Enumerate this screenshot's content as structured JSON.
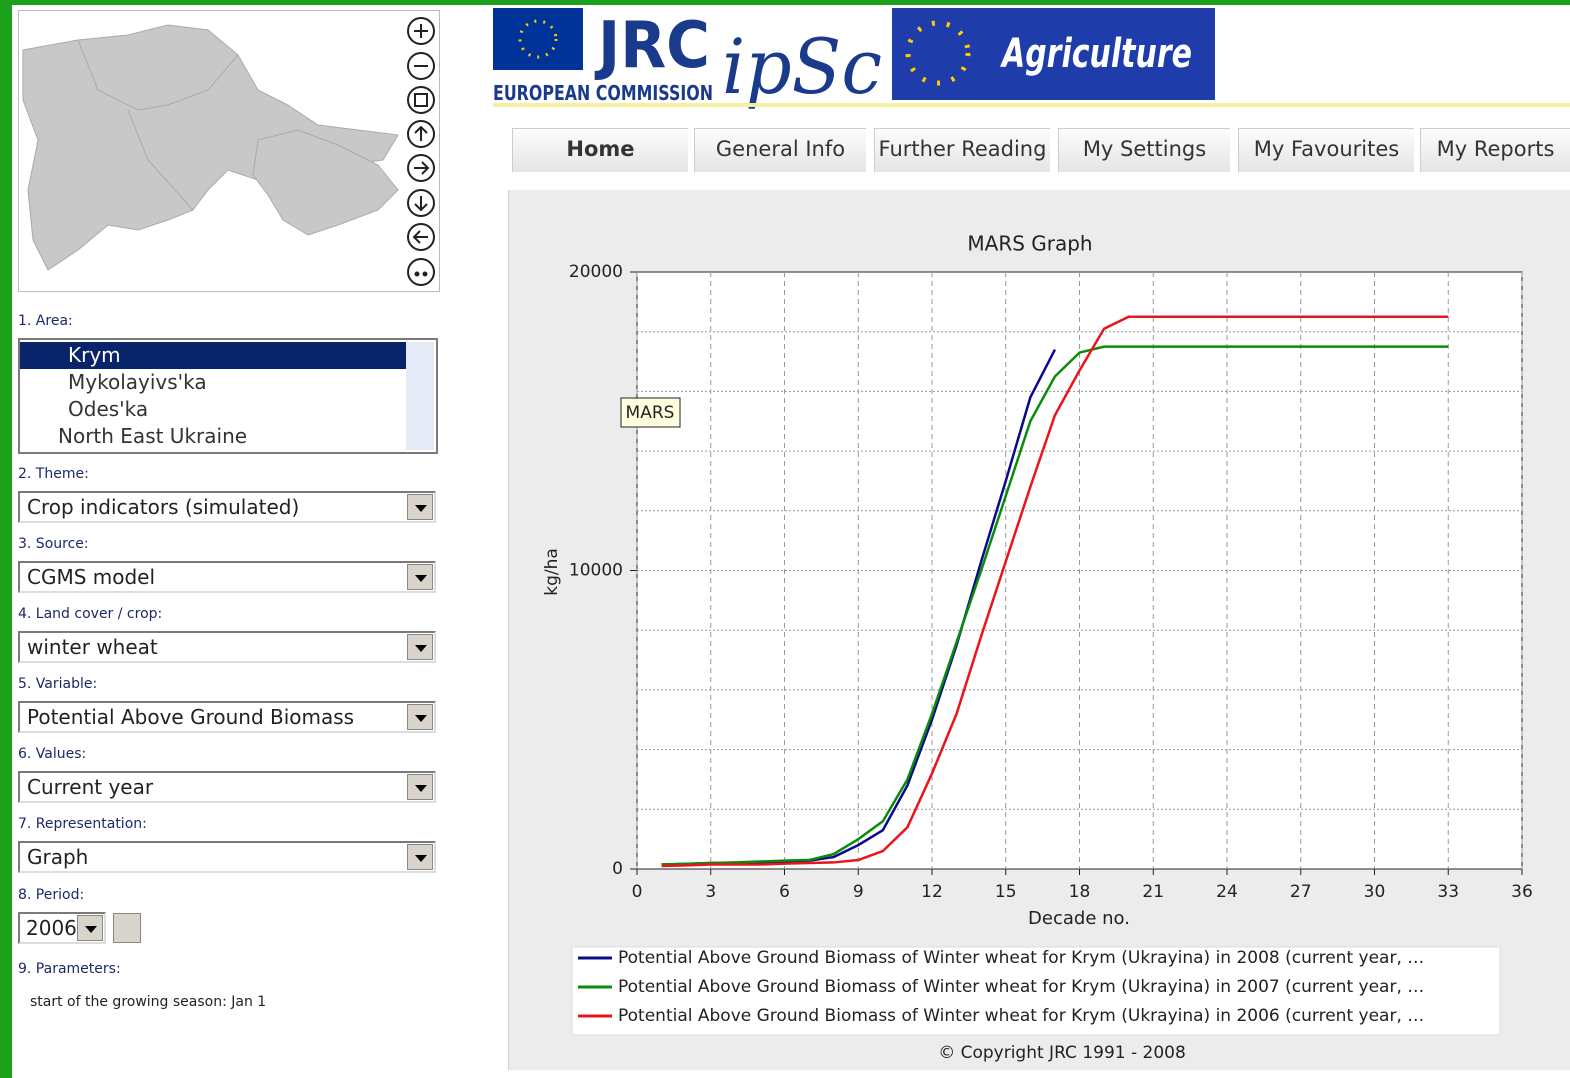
{
  "header": {
    "logo": "JRC",
    "org": "EUROPEAN COMMISSION",
    "institute": "ipSc",
    "banner": "Agriculture"
  },
  "tabs": [
    "Home",
    "General Info",
    "Further Reading",
    "My Settings",
    "My Favourites",
    "My Reports"
  ],
  "sidebar": {
    "area": {
      "label": "1. Area:",
      "options": [
        "Krym",
        "Mykolayivs'ka",
        "Odes'ka",
        "North East Ukraine"
      ]
    },
    "fields": [
      {
        "label": "2. Theme:",
        "value": "Crop indicators (simulated)"
      },
      {
        "label": "3. Source:",
        "value": "CGMS model"
      },
      {
        "label": "4. Land cover / crop:",
        "value": "winter wheat"
      },
      {
        "label": "5. Variable:",
        "value": "Potential Above Ground Biomass"
      },
      {
        "label": "6. Values:",
        "value": "Current year"
      },
      {
        "label": "7. Representation:",
        "value": "Graph"
      }
    ],
    "period": {
      "label": "8. Period:",
      "value": "2006"
    },
    "parameters": {
      "label": "9. Parameters:",
      "text": "start of the growing season: Jan 1"
    }
  },
  "chart_data": {
    "type": "line",
    "title": "MARS Graph",
    "x_label": "Decade no.",
    "y_label": "kg/ha",
    "annotation": "MARS",
    "copyright": "© Copyright JRC 1991 - 2008",
    "xlim": [
      0,
      36
    ],
    "xticks": [
      0,
      3,
      6,
      9,
      12,
      15,
      18,
      21,
      24,
      27,
      30,
      33,
      36
    ],
    "ylim": [
      0,
      20000
    ],
    "yticks": [
      0,
      10000,
      20000
    ],
    "ygrid": [
      2000,
      4000,
      6000,
      8000,
      10000,
      12000,
      14000,
      16000,
      18000
    ],
    "grid": true,
    "series": [
      {
        "name": "Potential Above Ground Biomass of Winter wheat for Krym (Ukrayina) in 2008 (current year, …",
        "color": "#0a0a8c",
        "x": [
          1,
          2,
          3,
          4,
          5,
          6,
          7,
          8,
          9,
          10,
          11,
          12,
          13,
          14,
          15,
          16,
          17
        ],
        "values": [
          150,
          170,
          200,
          200,
          220,
          250,
          280,
          400,
          800,
          1300,
          2800,
          5000,
          7500,
          10300,
          13000,
          15800,
          17400
        ]
      },
      {
        "name": "Potential Above Ground Biomass of Winter wheat for Krym (Ukrayina) in 2007 (current year, …",
        "color": "#0a8c0a",
        "x": [
          1,
          2,
          3,
          4,
          5,
          6,
          7,
          8,
          9,
          10,
          11,
          12,
          13,
          14,
          15,
          16,
          17,
          18,
          19,
          20,
          21,
          22,
          23,
          24,
          25,
          26,
          27,
          28,
          29,
          30,
          31,
          32,
          33
        ],
        "values": [
          150,
          170,
          200,
          220,
          250,
          280,
          300,
          500,
          1000,
          1600,
          3000,
          5200,
          7600,
          10000,
          12500,
          15000,
          16500,
          17300,
          17500,
          17500,
          17500,
          17500,
          17500,
          17500,
          17500,
          17500,
          17500,
          17500,
          17500,
          17500,
          17500,
          17500,
          17500
        ]
      },
      {
        "name": "Potential Above Ground Biomass of Winter wheat for Krym (Ukrayina) in 2006 (current year, …",
        "color": "#e8141e",
        "x": [
          1,
          2,
          3,
          4,
          5,
          6,
          7,
          8,
          9,
          10,
          11,
          12,
          13,
          14,
          15,
          16,
          17,
          18,
          19,
          20,
          21,
          22,
          23,
          24,
          25,
          26,
          27,
          28,
          29,
          30,
          31,
          32,
          33
        ],
        "values": [
          100,
          120,
          150,
          150,
          150,
          180,
          200,
          220,
          300,
          600,
          1400,
          3200,
          5200,
          7800,
          10300,
          12800,
          15200,
          16700,
          18100,
          18500,
          18500,
          18500,
          18500,
          18500,
          18500,
          18500,
          18500,
          18500,
          18500,
          18500,
          18500,
          18500,
          18500
        ]
      }
    ]
  }
}
